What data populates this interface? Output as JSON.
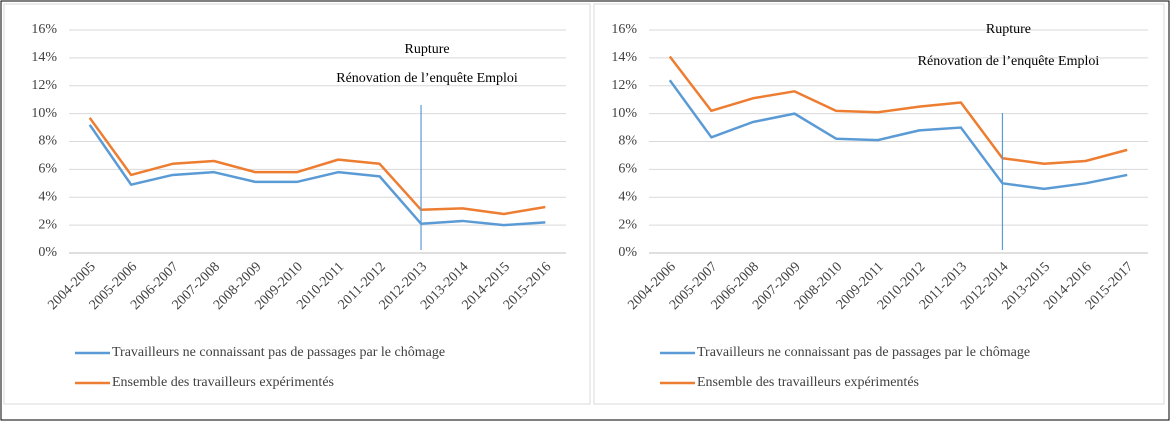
{
  "chart_data": [
    {
      "type": "line",
      "categories": [
        "2004-2005",
        "2005-2006",
        "2006-2007",
        "2007-2008",
        "2008-2009",
        "2009-2010",
        "2010-2011",
        "2011-2012",
        "2012-2013",
        "2013-2014",
        "2014-2015",
        "2015-2016"
      ],
      "series": [
        {
          "name": "Travailleurs ne connaissant pas de passages par le chômage",
          "color": "#5b9bd5",
          "values": [
            9.2,
            4.9,
            5.6,
            5.8,
            5.1,
            5.1,
            5.8,
            5.5,
            2.1,
            2.3,
            2.0,
            2.2
          ]
        },
        {
          "name": "Ensemble des travailleurs expérimentés",
          "color": "#ed7d31",
          "values": [
            9.7,
            5.6,
            6.4,
            6.6,
            5.8,
            5.8,
            6.7,
            6.4,
            3.1,
            3.2,
            2.8,
            3.3
          ]
        }
      ],
      "annotations": [
        "Rupture",
        "Rénovation de l’enquête Emploi"
      ],
      "annotation_x": "2012-2013",
      "ylim": [
        0,
        16
      ],
      "yticks": [
        {
          "value": 0,
          "label": "0%"
        },
        {
          "value": 2,
          "label": "2%"
        },
        {
          "value": 4,
          "label": "4%"
        },
        {
          "value": 6,
          "label": "6%"
        },
        {
          "value": 8,
          "label": "8%"
        },
        {
          "value": 10,
          "label": "10%"
        },
        {
          "value": 12,
          "label": "12%"
        },
        {
          "value": 14,
          "label": "14%"
        },
        {
          "value": 16,
          "label": "16%"
        }
      ],
      "grid": true,
      "legend": "bottom"
    },
    {
      "type": "line",
      "categories": [
        "2004-2006",
        "2005-2007",
        "2006-2008",
        "2007-2009",
        "2008-2010",
        "2009-2011",
        "2010-2012",
        "2011-2013",
        "2012-2014",
        "2013-2015",
        "2014-2016",
        "2015-2017"
      ],
      "series": [
        {
          "name": "Travailleurs ne connaissant pas de passages par le chômage",
          "color": "#5b9bd5",
          "values": [
            12.4,
            8.3,
            9.4,
            10.0,
            8.2,
            8.1,
            8.8,
            9.0,
            5.0,
            4.6,
            5.0,
            5.6
          ]
        },
        {
          "name": "Ensemble des travailleurs expérimentés",
          "color": "#ed7d31",
          "values": [
            14.1,
            10.2,
            11.1,
            11.6,
            10.2,
            10.1,
            10.5,
            10.8,
            6.8,
            6.4,
            6.6,
            7.4
          ]
        }
      ],
      "annotations": [
        "Rupture",
        "Rénovation de l’enquête Emploi"
      ],
      "annotation_x": "2012-2014",
      "ylim": [
        0,
        16
      ],
      "yticks": [
        {
          "value": 0,
          "label": "0%"
        },
        {
          "value": 2,
          "label": "2%"
        },
        {
          "value": 4,
          "label": "4%"
        },
        {
          "value": 6,
          "label": "6%"
        },
        {
          "value": 8,
          "label": "8%"
        },
        {
          "value": 10,
          "label": "10%"
        },
        {
          "value": 12,
          "label": "12%"
        },
        {
          "value": 14,
          "label": "14%"
        },
        {
          "value": 16,
          "label": "16%"
        }
      ],
      "grid": true,
      "legend": "bottom"
    }
  ]
}
